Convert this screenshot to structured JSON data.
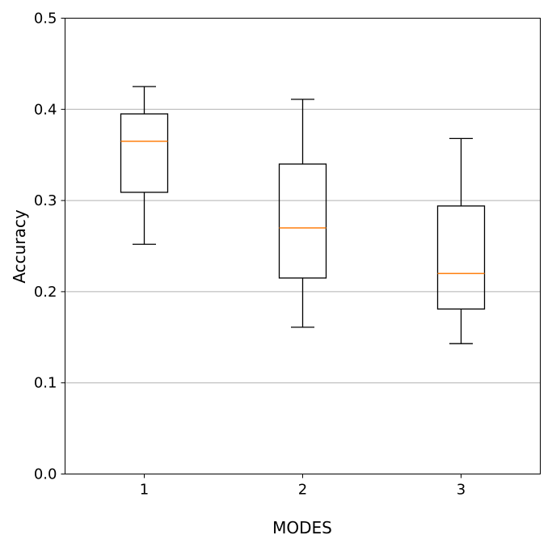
{
  "chart_data": {
    "type": "box",
    "categories": [
      "1",
      "2",
      "3"
    ],
    "boxes": [
      {
        "label": "1",
        "whisker_low": 0.252,
        "q1": 0.309,
        "median": 0.365,
        "q3": 0.395,
        "whisker_high": 0.425
      },
      {
        "label": "2",
        "whisker_low": 0.161,
        "q1": 0.215,
        "median": 0.27,
        "q3": 0.34,
        "whisker_high": 0.411
      },
      {
        "label": "3",
        "whisker_low": 0.143,
        "q1": 0.181,
        "median": 0.22,
        "q3": 0.294,
        "whisker_high": 0.368
      }
    ],
    "title": "",
    "xlabel": "MODES",
    "ylabel": "Accuracy",
    "ylim": [
      0.0,
      0.5
    ],
    "yticks": [
      "0.0",
      "0.1",
      "0.2",
      "0.3",
      "0.4",
      "0.5"
    ],
    "grid": "horizontal",
    "colors": {
      "box": "#000000",
      "median": "#ff7f0e",
      "grid": "#b0b0b0"
    }
  }
}
